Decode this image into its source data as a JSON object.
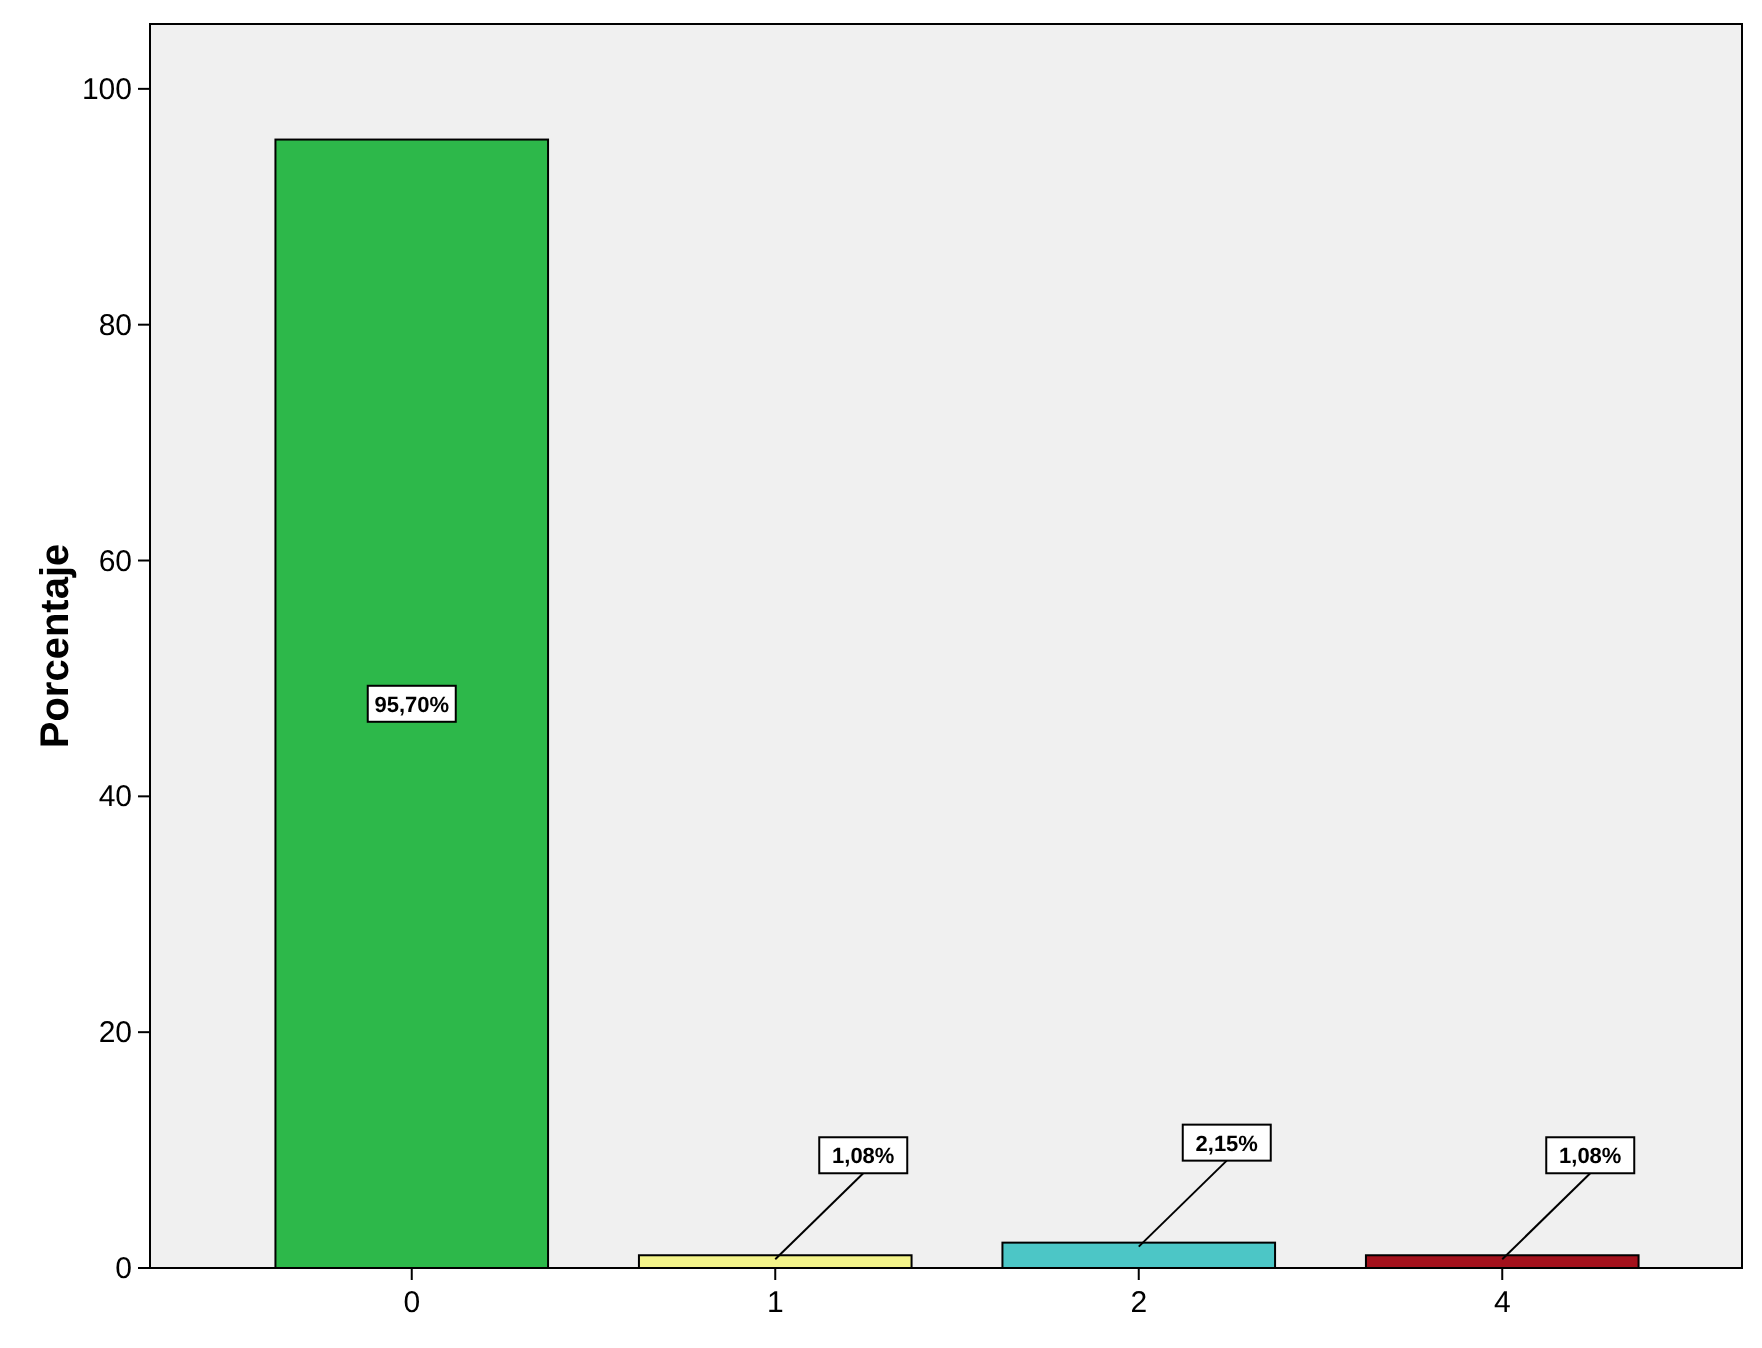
{
  "chart_data": {
    "type": "bar",
    "ylabel": "Porcentaje",
    "categories": [
      "0",
      "1",
      "2",
      "4"
    ],
    "values": [
      95.7,
      1.08,
      2.15,
      1.08
    ],
    "colors": [
      "#2db84a",
      "#f3f38a",
      "#4cc6c6",
      "#a3111c"
    ],
    "value_labels": [
      "95,70%",
      "1,08%",
      "2,15%",
      "1,08%"
    ],
    "ylim": [
      0,
      105.5
    ],
    "yticks": [
      0,
      20,
      40,
      60,
      80,
      100
    ],
    "grid": false
  }
}
